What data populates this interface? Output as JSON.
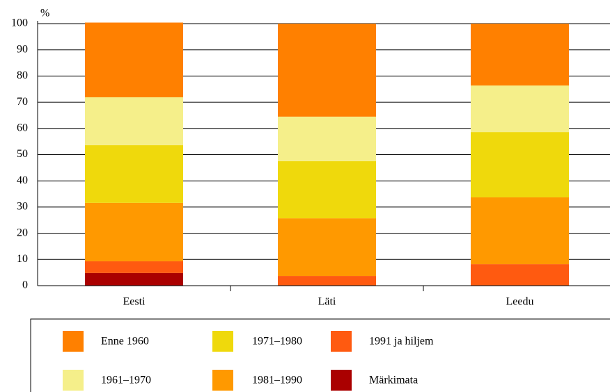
{
  "chart_data": {
    "type": "stacked_bar",
    "y_label": "%",
    "categories": [
      "Eesti",
      "Läti",
      "Leedu"
    ],
    "series": [
      {
        "name": "Enne 1960",
        "color": "#ff8000",
        "values": [
          28.5,
          35.5,
          23.6
        ]
      },
      {
        "name": "1961–1970",
        "color": "#f5ef8a",
        "values": [
          18.3,
          17.0,
          17.8
        ]
      },
      {
        "name": "1971–1980",
        "color": "#efd90c",
        "values": [
          22.0,
          21.8,
          24.9
        ]
      },
      {
        "name": "1981–1990",
        "color": "#ff9900",
        "values": [
          22.3,
          22.0,
          25.5
        ]
      },
      {
        "name": "1991 ja hiljem",
        "color": "#ff5a10",
        "values": [
          4.5,
          3.7,
          8.2
        ]
      },
      {
        "name": "Märkimata",
        "color": "#aa0000",
        "values": [
          4.8,
          0,
          0
        ]
      }
    ],
    "ylim": [
      0,
      100
    ],
    "yticks": [
      0,
      10,
      20,
      30,
      40,
      50,
      60,
      70,
      80,
      90,
      100
    ],
    "grid": true
  }
}
